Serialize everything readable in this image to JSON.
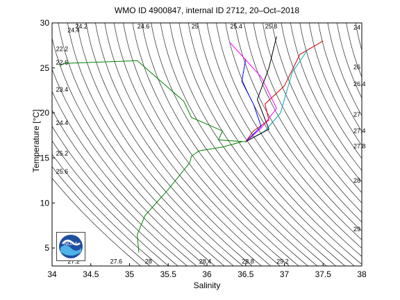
{
  "title": "WMO ID 4900847, internal ID 2712, 20–Oct–2018",
  "chart_data": {
    "type": "scatter",
    "title": "WMO ID 4900847, internal ID 2712, 20–Oct–2018",
    "xlabel": "Salinity",
    "ylabel": "Temperature [°C]",
    "xlim": [
      34,
      38
    ],
    "ylim": [
      3,
      30
    ],
    "xticks": [
      "34",
      "34.5",
      "35",
      "35.5",
      "36",
      "36.5",
      "37",
      "37.5",
      "38"
    ],
    "yticks": [
      "5",
      "10",
      "15",
      "20",
      "25",
      "30"
    ],
    "grid": false,
    "contour_label": "density isopleths (sigma-t)",
    "density_contours": [
      {
        "label": "24.2",
        "x": 34.3,
        "y": 29.9
      },
      {
        "label": "24.4",
        "x": 34.2,
        "y": 29.2
      },
      {
        "label": "24.6",
        "x": 35.1,
        "y": 29.9
      },
      {
        "label": "25",
        "x": 35.8,
        "y": 29.9
      },
      {
        "label": "25.4",
        "x": 36.3,
        "y": 29.9
      },
      {
        "label": "25.8",
        "x": 36.75,
        "y": 29.9
      },
      {
        "label": "24",
        "x": 37.95,
        "y": 29.5
      },
      {
        "label": "22.2",
        "x": 34.05,
        "y": 27.1
      },
      {
        "label": "22.6",
        "x": 34.05,
        "y": 25.6
      },
      {
        "label": "23.4",
        "x": 34.05,
        "y": 22.6
      },
      {
        "label": "24.4",
        "x": 34.05,
        "y": 18.9
      },
      {
        "label": "25.2",
        "x": 34.05,
        "y": 15.5
      },
      {
        "label": "25.6",
        "x": 34.05,
        "y": 13.5
      },
      {
        "label": "27.2",
        "x": 34.2,
        "y": 3.5
      },
      {
        "label": "27.6",
        "x": 34.75,
        "y": 3.5
      },
      {
        "label": "28",
        "x": 35.2,
        "y": 3.5
      },
      {
        "label": "28.4",
        "x": 35.9,
        "y": 3.5
      },
      {
        "label": "28.8",
        "x": 36.45,
        "y": 3.5
      },
      {
        "label": "29.2",
        "x": 36.9,
        "y": 3.5
      },
      {
        "label": "26",
        "x": 37.98,
        "y": 25.1
      },
      {
        "label": "26.4",
        "x": 37.98,
        "y": 23.2
      },
      {
        "label": "27",
        "x": 37.98,
        "y": 19.8
      },
      {
        "label": "27.4",
        "x": 37.98,
        "y": 18.0
      },
      {
        "label": "27.8",
        "x": 37.98,
        "y": 16.3
      },
      {
        "label": "28",
        "x": 37.98,
        "y": 12.5
      },
      {
        "label": "29",
        "x": 37.98,
        "y": 7.1
      }
    ],
    "series": [
      {
        "color": "#008000",
        "x": [
          34.1,
          34.15,
          35.1,
          35.7,
          35.8,
          36.2,
          36.15,
          36.5,
          36.6
        ],
        "y": [
          25.2,
          25.5,
          25.8,
          21.3,
          19.5,
          18.0,
          17.0,
          16.8,
          17.5
        ]
      },
      {
        "color": "#008000",
        "x": [
          36.45,
          36.2,
          35.9,
          35.8,
          35.78,
          35.5,
          35.2,
          35.1,
          35.12
        ],
        "y": [
          16.8,
          16.2,
          15.8,
          15.2,
          14.5,
          11.5,
          8.6,
          6.5,
          4.5
        ]
      },
      {
        "color": "#cc0000",
        "x": [
          36.5,
          36.6,
          36.8,
          36.75,
          37.0,
          37.2,
          37.5
        ],
        "y": [
          16.8,
          18.0,
          19.2,
          21.0,
          23.0,
          26.5,
          28.0
        ]
      },
      {
        "color": "#0000ff",
        "x": [
          36.5,
          36.7,
          36.6,
          36.45,
          36.5
        ],
        "y": [
          16.8,
          18.5,
          21.0,
          23.5,
          26.0
        ]
      },
      {
        "color": "#ff00ff",
        "x": [
          36.5,
          36.7,
          36.9,
          36.7,
          36.3
        ],
        "y": [
          16.8,
          18.3,
          20.5,
          24.0,
          27.8
        ]
      },
      {
        "color": "#00aaaa",
        "x": [
          36.5,
          36.75,
          36.95,
          37.1,
          37.3
        ],
        "y": [
          16.8,
          18.0,
          20.0,
          24.5,
          27.0
        ]
      },
      {
        "color": "#000000",
        "x": [
          36.5,
          36.8,
          36.65,
          36.8,
          36.9
        ],
        "y": [
          16.8,
          18.2,
          21.5,
          25.0,
          28.5
        ]
      }
    ]
  },
  "logo": {
    "text": "NOAA"
  }
}
